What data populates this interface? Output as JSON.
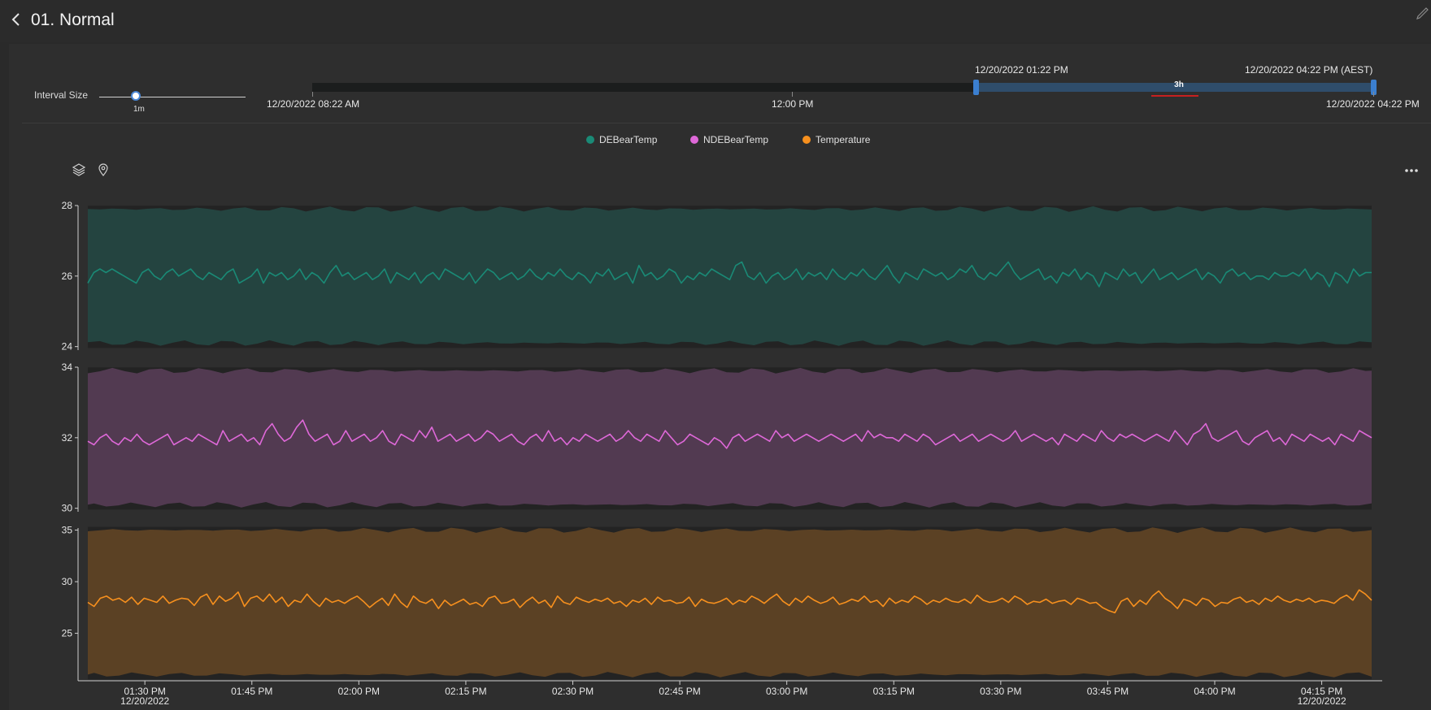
{
  "header": {
    "title": "01. Normal"
  },
  "interval": {
    "label": "Interval Size",
    "value": "1m",
    "fraction": 0.25
  },
  "range": {
    "start_label": "12/20/2022 08:22 AM",
    "mid_label": "12:00 PM",
    "end_label": "12/20/2022 04:22 PM",
    "sel_start_label": "12/20/2022 01:22 PM",
    "sel_end_label": "12/20/2022 04:22 PM (AEST)",
    "duration": "3h"
  },
  "legend": [
    {
      "name": "DEBearTemp",
      "color": "#1a8a76"
    },
    {
      "name": "NDEBearTemp",
      "color": "#de68d8"
    },
    {
      "name": "Temperature",
      "color": "#f7901e"
    }
  ],
  "colors": {
    "background": "#2a2a2a",
    "band_teal": "#244440",
    "band_purple": "#523a51",
    "band_orange": "#5b4124",
    "envelope": "#232323",
    "range_selection": "#2f4d6b",
    "handle": "#3b7fd0"
  },
  "chart_data": {
    "type": "line",
    "x_start": "01:22 PM",
    "x_end": "04:22 PM",
    "x_ticks": [
      "01:30 PM",
      "01:45 PM",
      "02:00 PM",
      "02:15 PM",
      "02:30 PM",
      "02:45 PM",
      "03:00 PM",
      "03:15 PM",
      "03:30 PM",
      "03:45 PM",
      "04:00 PM",
      "04:15 PM"
    ],
    "x_date_first": "12/20/2022",
    "x_date_last": "12/20/2022",
    "series": [
      {
        "name": "DEBearTemp",
        "color": "#1a8a76",
        "ylim": [
          23.9,
          28.0
        ],
        "yticks": [
          24,
          26,
          28
        ],
        "band": [
          24.1,
          27.9
        ],
        "values": [
          25.8,
          26.1,
          26.2,
          26.1,
          26.2,
          26.1,
          26.0,
          25.9,
          25.8,
          26.1,
          26.2,
          26.0,
          25.9,
          26.1,
          26.2,
          26.0,
          26.1,
          26.2,
          26.0,
          25.9,
          26.1,
          26.0,
          25.9,
          26.1,
          26.2,
          25.8,
          25.9,
          26.0,
          26.2,
          25.8,
          26.1,
          26.0,
          26.1,
          25.9,
          26.0,
          26.2,
          25.9,
          26.1,
          26.0,
          25.8,
          26.1,
          26.3,
          26.0,
          26.1,
          25.9,
          26.0,
          26.1,
          25.9,
          26.0,
          26.2,
          25.8,
          26.1,
          26.0,
          25.9,
          26.1,
          25.8,
          26.0,
          26.1,
          25.9,
          26.2,
          26.1,
          26.0,
          25.9,
          26.1,
          25.8,
          26.0,
          26.2,
          26.1,
          25.9,
          26.0,
          26.1,
          25.9,
          26.0,
          26.2,
          26.0,
          25.9,
          26.1,
          26.0,
          26.2,
          26.0,
          25.9,
          26.1,
          26.0,
          25.8,
          26.1,
          26.0,
          26.2,
          25.9,
          26.0,
          26.1,
          25.8,
          26.3,
          26.0,
          26.1,
          25.9,
          26.0,
          26.2,
          26.1,
          25.8,
          26.0,
          25.9,
          26.1,
          26.0,
          26.2,
          26.1,
          26.0,
          25.9,
          26.3,
          26.4,
          26.0,
          25.9,
          26.1,
          25.8,
          26.0,
          26.1,
          25.9,
          26.0,
          26.2,
          25.9,
          26.1,
          26.0,
          26.1,
          25.9,
          26.2,
          26.0,
          25.9,
          26.1,
          26.0,
          26.2,
          26.0,
          25.9,
          26.1,
          26.3,
          26.0,
          25.8,
          26.1,
          26.0,
          25.9,
          26.2,
          26.1,
          26.0,
          26.1,
          25.9,
          26.0,
          26.2,
          26.1,
          26.3,
          26.0,
          25.9,
          26.1,
          26.0,
          26.2,
          26.4,
          26.1,
          25.9,
          26.0,
          26.1,
          26.2,
          25.9,
          26.0,
          25.8,
          26.1,
          26.0,
          26.2,
          25.9,
          26.1,
          26.0,
          25.7,
          26.1,
          26.0,
          25.9,
          26.2,
          26.0,
          26.1,
          25.8,
          26.0,
          26.2,
          25.9,
          26.0,
          26.1,
          25.9,
          26.0,
          26.1,
          26.2,
          25.9,
          26.1,
          26.0,
          25.8,
          26.1,
          26.2,
          26.0,
          26.1,
          25.9,
          26.0,
          26.0,
          25.9,
          26.1,
          26.0,
          26.0,
          26.1,
          26.0,
          26.2,
          25.9,
          26.1,
          26.0,
          25.7,
          26.1,
          26.0,
          25.8,
          26.2,
          26.0,
          26.1,
          26.1
        ],
        "mark": "line"
      },
      {
        "name": "NDEBearTemp",
        "color": "#de68d8",
        "ylim": [
          29.9,
          34.0
        ],
        "yticks": [
          30,
          32,
          34
        ],
        "band": [
          30.1,
          33.9
        ],
        "values": [
          31.9,
          31.8,
          32.0,
          32.1,
          31.9,
          31.8,
          32.0,
          31.9,
          32.1,
          31.9,
          31.8,
          31.9,
          32.0,
          32.1,
          31.8,
          31.9,
          32.0,
          31.9,
          32.1,
          32.0,
          31.9,
          31.8,
          32.2,
          31.9,
          32.0,
          32.1,
          31.9,
          32.0,
          31.8,
          32.2,
          32.4,
          32.1,
          31.9,
          32.0,
          32.3,
          32.5,
          32.1,
          31.9,
          32.0,
          32.1,
          31.8,
          31.9,
          32.2,
          31.9,
          32.0,
          32.1,
          31.9,
          32.0,
          32.2,
          31.9,
          31.8,
          32.1,
          32.0,
          31.9,
          32.2,
          32.0,
          32.3,
          31.9,
          32.0,
          32.1,
          31.9,
          32.0,
          32.1,
          31.9,
          32.0,
          32.2,
          32.1,
          31.9,
          32.0,
          32.1,
          31.9,
          31.8,
          32.0,
          32.1,
          31.9,
          32.2,
          31.9,
          32.0,
          31.8,
          32.0,
          31.9,
          32.1,
          32.0,
          31.9,
          32.0,
          32.1,
          31.9,
          32.0,
          32.2,
          32.0,
          31.9,
          32.1,
          32.0,
          31.9,
          32.2,
          32.0,
          31.8,
          31.9,
          32.1,
          32.0,
          31.9,
          31.8,
          32.0,
          31.9,
          31.7,
          32.0,
          32.1,
          31.9,
          32.0,
          32.1,
          32.0,
          31.9,
          32.2,
          32.0,
          32.1,
          31.9,
          32.0,
          32.1,
          32.0,
          31.9,
          32.0,
          32.1,
          32.0,
          31.9,
          32.0,
          32.1,
          31.9,
          32.2,
          32.0,
          32.1,
          32.0,
          32.0,
          31.9,
          32.1,
          32.0,
          31.9,
          32.1,
          32.0,
          31.8,
          31.9,
          32.0,
          32.1,
          31.9,
          32.0,
          32.1,
          31.9,
          32.0,
          32.1,
          32.0,
          31.9,
          32.0,
          32.2,
          31.9,
          32.0,
          32.1,
          32.0,
          31.9,
          32.0,
          31.8,
          32.1,
          32.0,
          31.9,
          32.1,
          32.0,
          31.9,
          32.2,
          32.0,
          31.9,
          32.1,
          32.0,
          32.1,
          32.0,
          31.9,
          32.0,
          32.1,
          32.0,
          31.9,
          32.2,
          32.0,
          31.8,
          32.1,
          32.2,
          32.4,
          32.0,
          31.9,
          32.0,
          32.1,
          32.2,
          31.9,
          31.8,
          32.0,
          32.1,
          32.2,
          31.9,
          32.0,
          31.8,
          32.1,
          32.0,
          31.9,
          32.1,
          32.0,
          31.9,
          32.0,
          31.8,
          32.1,
          32.0,
          31.9,
          32.2,
          32.1,
          32.0
        ],
        "mark": "line"
      },
      {
        "name": "Temperature",
        "color": "#f7901e",
        "ylim": [
          20.4,
          35.2
        ],
        "yticks": [
          25,
          30,
          35
        ],
        "band": [
          21.0,
          35.0
        ],
        "values": [
          28.0,
          27.6,
          28.4,
          28.6,
          28.2,
          28.4,
          28.0,
          28.5,
          27.8,
          28.4,
          28.2,
          28.0,
          28.6,
          27.9,
          28.2,
          28.4,
          28.3,
          27.7,
          28.5,
          28.8,
          27.8,
          28.6,
          28.1,
          28.4,
          29.0,
          27.6,
          28.4,
          28.6,
          28.1,
          28.8,
          28.0,
          28.5,
          27.6,
          28.2,
          28.0,
          28.8,
          28.1,
          27.6,
          28.4,
          28.0,
          28.2,
          27.9,
          28.3,
          28.6,
          28.1,
          27.5,
          28.0,
          28.4,
          27.7,
          28.8,
          28.0,
          27.5,
          28.6,
          28.1,
          27.9,
          28.3,
          27.4,
          28.2,
          27.7,
          28.0,
          28.3,
          27.8,
          28.0,
          27.6,
          28.4,
          28.6,
          27.9,
          28.0,
          28.3,
          27.5,
          28.1,
          28.5,
          27.9,
          28.2,
          27.5,
          28.6,
          28.0,
          27.8,
          28.5,
          28.2,
          28.0,
          28.3,
          28.1,
          28.4,
          27.9,
          28.1,
          27.6,
          28.2,
          28.0,
          28.4,
          27.8,
          28.5,
          28.1,
          28.2,
          27.9,
          28.0,
          28.5,
          27.6,
          28.3,
          28.0,
          27.9,
          28.1,
          28.4,
          27.8,
          28.2,
          28.0,
          28.6,
          28.3,
          27.9,
          28.4,
          28.8,
          28.1,
          27.7,
          28.4,
          28.0,
          28.6,
          28.2,
          27.9,
          28.1,
          28.5,
          27.8,
          28.0,
          28.3,
          28.1,
          28.6,
          28.0,
          28.2,
          27.6,
          28.4,
          27.9,
          28.2,
          28.0,
          28.6,
          28.3,
          27.8,
          28.2,
          28.0,
          28.4,
          28.1,
          28.0,
          28.3,
          27.9,
          28.7,
          28.2,
          28.0,
          28.1,
          28.4,
          28.0,
          28.6,
          28.3,
          27.8,
          28.1,
          28.0,
          28.3,
          27.9,
          28.1,
          28.2,
          27.8,
          28.4,
          28.2,
          27.9,
          28.0,
          27.5,
          27.2,
          27.0,
          28.1,
          28.4,
          27.6,
          28.2,
          27.8,
          28.6,
          29.1,
          28.4,
          28.0,
          27.4,
          28.3,
          28.1,
          27.7,
          28.4,
          28.2,
          27.6,
          28.0,
          27.9,
          28.3,
          28.5,
          28.0,
          28.2,
          27.8,
          28.4,
          28.1,
          28.6,
          28.2,
          28.0,
          28.3,
          28.1,
          28.4,
          28.0,
          28.2,
          28.1,
          27.9,
          28.4,
          28.7,
          28.2,
          29.2,
          28.8,
          28.2
        ],
        "mark": "line"
      }
    ]
  }
}
